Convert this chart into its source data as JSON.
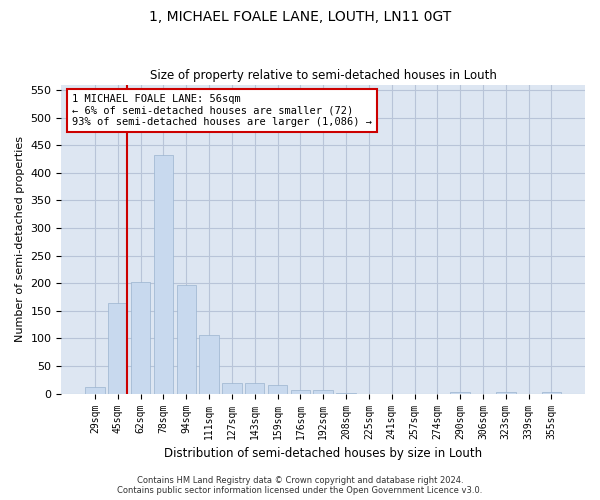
{
  "title": "1, MICHAEL FOALE LANE, LOUTH, LN11 0GT",
  "subtitle": "Size of property relative to semi-detached houses in Louth",
  "xlabel": "Distribution of semi-detached houses by size in Louth",
  "ylabel": "Number of semi-detached properties",
  "categories": [
    "29sqm",
    "45sqm",
    "62sqm",
    "78sqm",
    "94sqm",
    "111sqm",
    "127sqm",
    "143sqm",
    "159sqm",
    "176sqm",
    "192sqm",
    "208sqm",
    "225sqm",
    "241sqm",
    "257sqm",
    "274sqm",
    "290sqm",
    "306sqm",
    "323sqm",
    "339sqm",
    "355sqm"
  ],
  "values": [
    13,
    165,
    203,
    432,
    196,
    106,
    20,
    19,
    16,
    7,
    7,
    1,
    0,
    0,
    0,
    0,
    3,
    0,
    3,
    0,
    3
  ],
  "bar_color": "#c8d9ee",
  "bar_edge_color": "#9ab3cf",
  "grid_color": "#b8c4d8",
  "background_color": "#dde6f2",
  "vline_color": "#cc0000",
  "annotation_title": "1 MICHAEL FOALE LANE: 56sqm",
  "annotation_line1": "← 6% of semi-detached houses are smaller (72)",
  "annotation_line2": "93% of semi-detached houses are larger (1,086) →",
  "annotation_box_color": "#cc0000",
  "ylim": [
    0,
    560
  ],
  "yticks": [
    0,
    50,
    100,
    150,
    200,
    250,
    300,
    350,
    400,
    450,
    500,
    550
  ],
  "footer1": "Contains HM Land Registry data © Crown copyright and database right 2024.",
  "footer2": "Contains public sector information licensed under the Open Government Licence v3.0."
}
